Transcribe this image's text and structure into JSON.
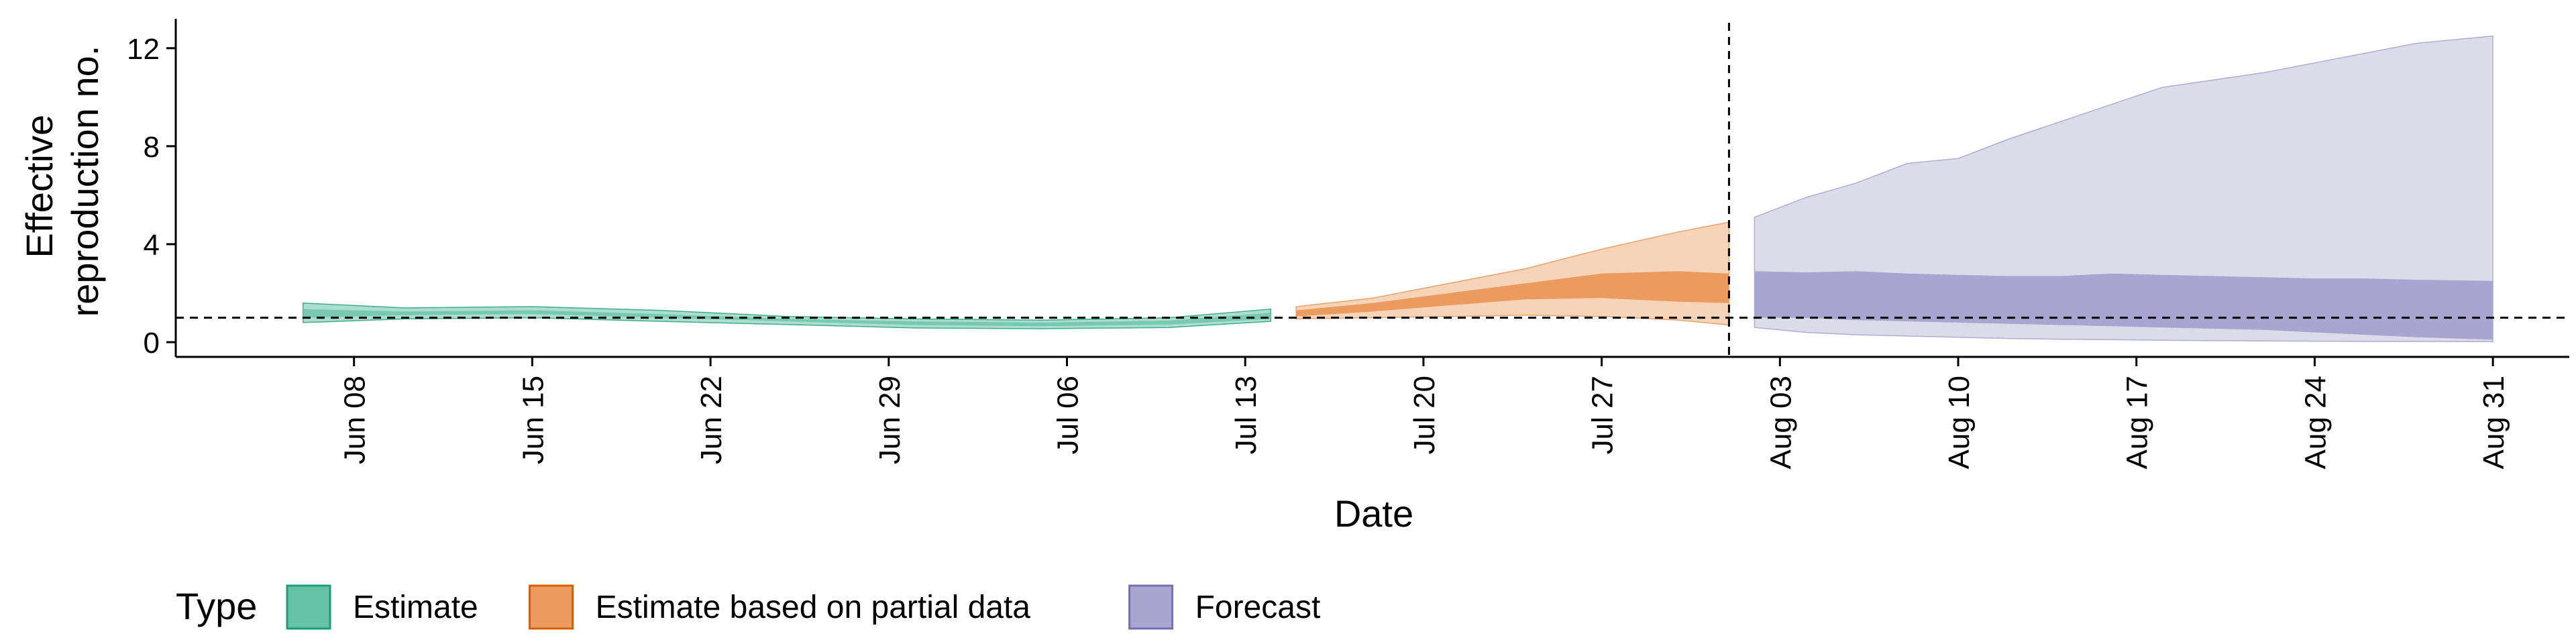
{
  "chart_data": {
    "type": "area",
    "xlabel": "Date",
    "ylabel": [
      "Effective",
      "reproduction no."
    ],
    "x_range": [
      "2024-06-01",
      "2024-09-03"
    ],
    "ylim": [
      -0.6,
      13.2
    ],
    "yticks": [
      0,
      4,
      8,
      12
    ],
    "xticks": [
      {
        "date": "2024-06-08",
        "label": "Jun 08"
      },
      {
        "date": "2024-06-15",
        "label": "Jun 15"
      },
      {
        "date": "2024-06-22",
        "label": "Jun 22"
      },
      {
        "date": "2024-06-29",
        "label": "Jun 29"
      },
      {
        "date": "2024-07-06",
        "label": "Jul 06"
      },
      {
        "date": "2024-07-13",
        "label": "Jul 13"
      },
      {
        "date": "2024-07-20",
        "label": "Jul 20"
      },
      {
        "date": "2024-07-27",
        "label": "Jul 27"
      },
      {
        "date": "2024-08-03",
        "label": "Aug 03"
      },
      {
        "date": "2024-08-10",
        "label": "Aug 10"
      },
      {
        "date": "2024-08-17",
        "label": "Aug 17"
      },
      {
        "date": "2024-08-24",
        "label": "Aug 24"
      },
      {
        "date": "2024-08-31",
        "label": "Aug 31"
      }
    ],
    "reference_line_y": 1,
    "vertical_line_date": "2024-08-01",
    "grid": false,
    "legend": {
      "title": "Type",
      "position": "bottom",
      "items": [
        {
          "label": "Estimate",
          "fill": "#66c2a5",
          "stroke": "#1b9e77"
        },
        {
          "label": "Estimate based on partial data",
          "fill": "#eb9b5f",
          "stroke": "#d95f02"
        },
        {
          "label": "Forecast",
          "fill": "#a9a5d1",
          "stroke": "#7570b3"
        }
      ]
    },
    "series": [
      {
        "type_label": "Estimate",
        "outer_color": "#66c2a5",
        "inner_color": "#66c2a5",
        "line_color": "#1b9e77",
        "x": [
          "2024-06-06",
          "2024-06-10",
          "2024-06-15",
          "2024-06-20",
          "2024-06-25",
          "2024-06-30",
          "2024-07-05",
          "2024-07-10",
          "2024-07-14"
        ],
        "lower_90": [
          0.8,
          0.95,
          1.0,
          0.85,
          0.72,
          0.58,
          0.55,
          0.6,
          0.85
        ],
        "upper_90": [
          1.6,
          1.4,
          1.45,
          1.3,
          1.05,
          0.95,
          0.9,
          1.0,
          1.35
        ],
        "lower_50": [
          1.0,
          1.1,
          1.15,
          1.0,
          0.85,
          0.7,
          0.65,
          0.72,
          0.95
        ],
        "upper_50": [
          1.35,
          1.25,
          1.3,
          1.15,
          0.95,
          0.85,
          0.8,
          0.88,
          1.2
        ]
      },
      {
        "type_label": "Estimate based on partial data",
        "outer_color": "#f7d3b8",
        "inner_color": "#eb9b5f",
        "line_color": "#d95f02",
        "x": [
          "2024-07-15",
          "2024-07-18",
          "2024-07-21",
          "2024-07-24",
          "2024-07-27",
          "2024-07-30",
          "2024-08-01"
        ],
        "lower_90": [
          0.95,
          1.0,
          1.05,
          1.1,
          1.05,
          0.9,
          0.7
        ],
        "upper_90": [
          1.45,
          1.8,
          2.4,
          3.0,
          3.8,
          4.5,
          4.9
        ],
        "lower_50": [
          1.05,
          1.25,
          1.5,
          1.75,
          1.8,
          1.65,
          1.6
        ],
        "upper_50": [
          1.3,
          1.6,
          2.0,
          2.4,
          2.8,
          2.9,
          2.8
        ]
      },
      {
        "type_label": "Forecast",
        "outer_color": "#dcdbea",
        "inner_color": "#a9a5d1",
        "line_color": "#7570b3",
        "x": [
          "2024-08-02",
          "2024-08-04",
          "2024-08-06",
          "2024-08-08",
          "2024-08-10",
          "2024-08-12",
          "2024-08-14",
          "2024-08-16",
          "2024-08-18",
          "2024-08-20",
          "2024-08-22",
          "2024-08-24",
          "2024-08-26",
          "2024-08-28",
          "2024-08-31"
        ],
        "lower_90": [
          0.6,
          0.4,
          0.3,
          0.25,
          0.2,
          0.15,
          0.12,
          0.1,
          0.08,
          0.06,
          0.05,
          0.04,
          0.03,
          0.03,
          0.02
        ],
        "upper_90": [
          5.1,
          5.9,
          6.5,
          7.3,
          7.5,
          8.3,
          9.0,
          9.7,
          10.4,
          10.7,
          11.0,
          11.4,
          11.8,
          12.2,
          12.5
        ],
        "lower_50": [
          1.0,
          1.0,
          0.9,
          0.85,
          0.8,
          0.75,
          0.7,
          0.65,
          0.6,
          0.55,
          0.5,
          0.4,
          0.3,
          0.2,
          0.1
        ],
        "upper_50": [
          2.9,
          2.85,
          2.9,
          2.8,
          2.75,
          2.7,
          2.7,
          2.8,
          2.75,
          2.7,
          2.65,
          2.6,
          2.6,
          2.55,
          2.5
        ]
      }
    ]
  }
}
